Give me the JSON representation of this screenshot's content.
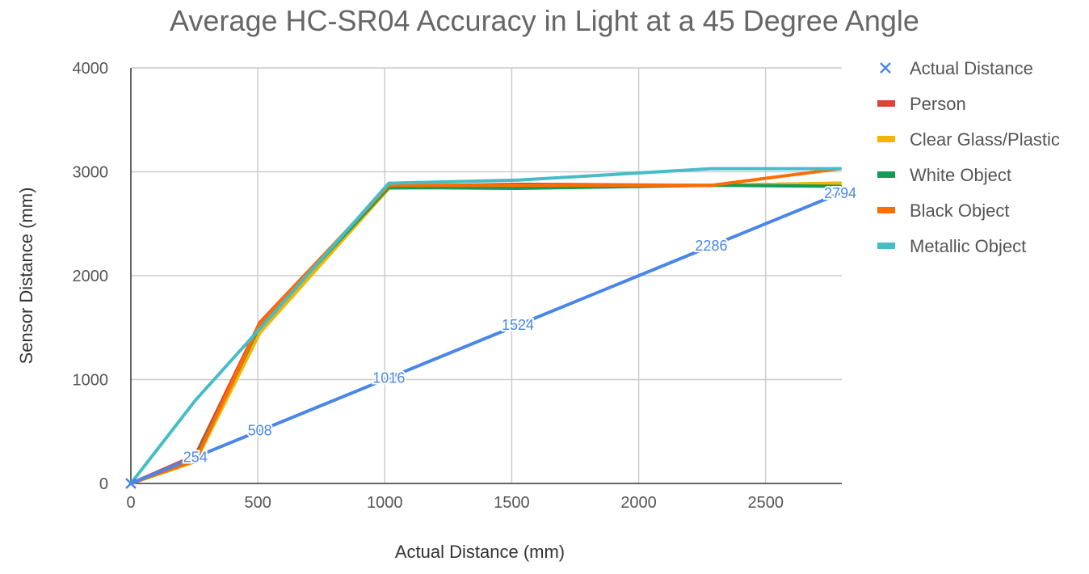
{
  "chart_data": {
    "type": "line",
    "title": "Average HC-SR04 Accuracy in Light at a 45 Degree Angle",
    "xlabel": "Actual Distance (mm)",
    "ylabel": "Sensor Distance (mm)",
    "xlim": [
      0,
      2800
    ],
    "ylim": [
      0,
      4000
    ],
    "x_ticks": [
      0,
      500,
      1000,
      1500,
      2000,
      2500
    ],
    "y_ticks": [
      0,
      1000,
      2000,
      3000,
      4000
    ],
    "grid": true,
    "legend": "right",
    "x": [
      0,
      254,
      508,
      1016,
      1524,
      2286,
      2794
    ],
    "series": [
      {
        "name": "Actual Distance",
        "color": "#4a86e8",
        "marker": "x",
        "values": [
          0,
          254,
          508,
          1016,
          1524,
          2286,
          2794
        ],
        "data_labels": [
          "",
          "254",
          "508",
          "1016",
          "1524",
          "2286",
          "2794"
        ]
      },
      {
        "name": "Person",
        "color": "#db4437",
        "values": [
          0,
          270,
          1550,
          2860,
          2880,
          2870,
          2890
        ]
      },
      {
        "name": "Clear Glass/Plastic",
        "color": "#f4b400",
        "values": [
          0,
          210,
          1450,
          2840,
          2860,
          2870,
          2890
        ]
      },
      {
        "name": "White Object",
        "color": "#0f9d58",
        "values": [
          0,
          240,
          1520,
          2850,
          2840,
          2870,
          2860
        ]
      },
      {
        "name": "Black Object",
        "color": "#ff6d00",
        "values": [
          0,
          220,
          1540,
          2870,
          2870,
          2870,
          3030
        ]
      },
      {
        "name": "Metallic Object",
        "color": "#46bdc6",
        "values": [
          0,
          800,
          1490,
          2890,
          2920,
          3030,
          3030
        ]
      }
    ]
  }
}
